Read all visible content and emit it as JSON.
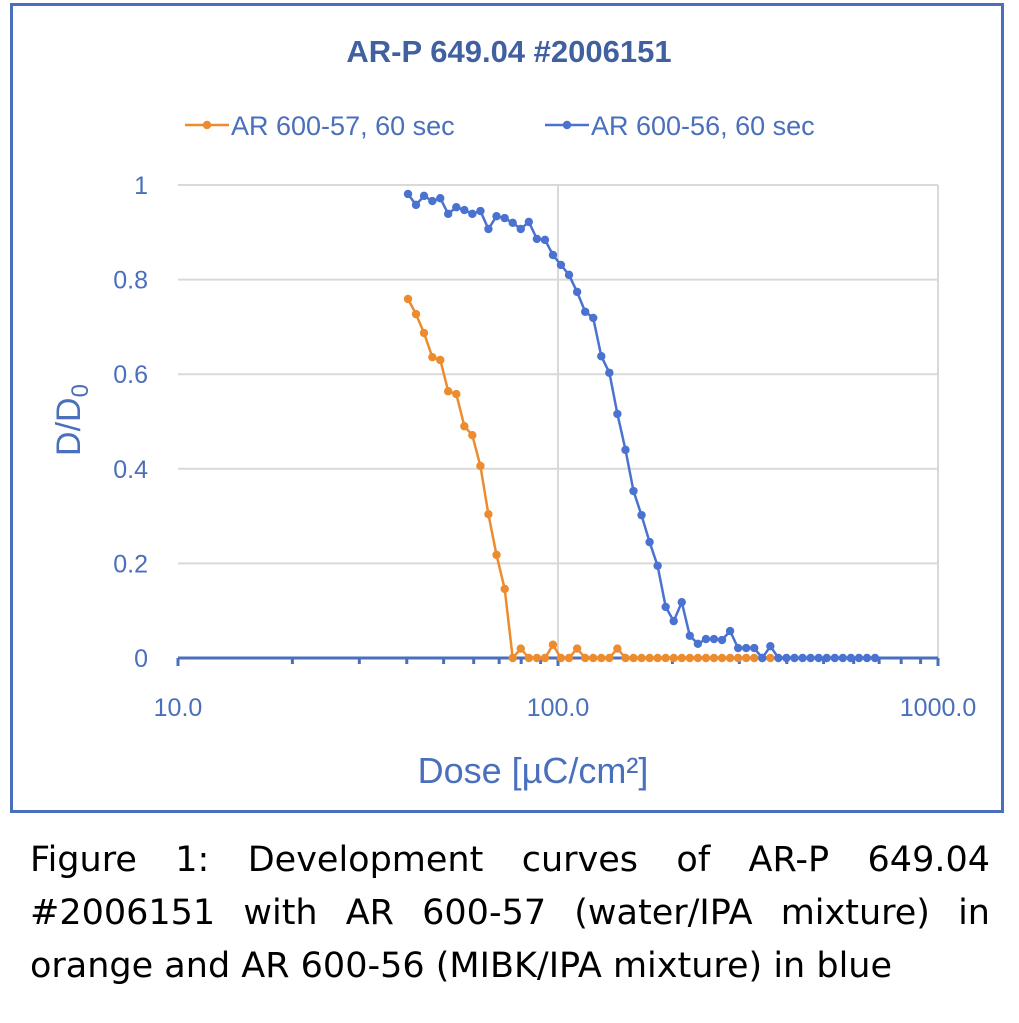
{
  "chart_data": {
    "type": "line",
    "title": "AR-P 649.04 #2006151",
    "xlabel": "Dose [µC/cm²]",
    "ylabel_main": "D/D",
    "ylabel_sub": "0",
    "xscale": "log",
    "xlim": [
      10,
      1000
    ],
    "ylim": [
      0,
      1
    ],
    "xticks": [
      "10.0",
      "100.0",
      "1000.0"
    ],
    "yticks": [
      "0",
      "0.2",
      "0.4",
      "0.6",
      "0.8",
      "1"
    ],
    "grid": true,
    "legend_position": "top",
    "series": [
      {
        "name": "AR 600-57, 60 sec",
        "color": "#ed8b2f",
        "x": [
          40.3,
          42.3,
          44.4,
          46.7,
          49.0,
          51.4,
          54.0,
          56.7,
          59.5,
          62.5,
          65.6,
          68.9,
          72.4,
          76.0,
          79.8,
          83.8,
          88.0,
          92.4,
          97.0,
          101.8,
          106.9,
          112.3,
          117.9,
          123.8,
          130.0,
          136.5,
          143.3,
          150.5,
          158.0,
          165.9,
          174.2,
          182.9,
          192.0,
          201.6,
          211.7,
          222.3,
          233.4,
          245.1,
          257.3,
          270.2,
          283.7,
          297.9,
          312.8,
          328.4,
          344.8,
          362.1
        ],
        "y": [
          0.759,
          0.727,
          0.687,
          0.636,
          0.63,
          0.564,
          0.558,
          0.49,
          0.471,
          0.406,
          0.304,
          0.218,
          0.146,
          0,
          0.02,
          0,
          0,
          0,
          0.028,
          0,
          0,
          0.02,
          0,
          0,
          0,
          0,
          0.02,
          0,
          0,
          0,
          0,
          0,
          0,
          0,
          0,
          0,
          0,
          0,
          0,
          0,
          0,
          0,
          0,
          0,
          0,
          0
        ]
      },
      {
        "name": "AR 600-56, 60 sec",
        "color": "#4a72d0",
        "x": [
          40.3,
          42.3,
          44.4,
          46.7,
          49.0,
          51.4,
          54.0,
          56.7,
          59.5,
          62.5,
          65.6,
          68.9,
          72.4,
          76.0,
          79.8,
          83.8,
          88.0,
          92.4,
          97.0,
          101.8,
          106.9,
          112.3,
          117.9,
          123.8,
          130.0,
          136.5,
          143.3,
          150.5,
          158.0,
          165.9,
          174.2,
          182.9,
          192.0,
          201.6,
          211.7,
          222.3,
          233.4,
          245.1,
          257.3,
          270.2,
          283.7,
          297.9,
          312.8,
          328.4,
          344.8,
          362.1,
          380.2,
          399.2,
          419.1,
          440.1,
          462.1,
          485.2,
          509.5,
          535.0,
          561.7,
          589.8,
          619.3,
          650.2,
          682.8
        ],
        "y": [
          0.981,
          0.958,
          0.977,
          0.966,
          0.972,
          0.939,
          0.953,
          0.947,
          0.939,
          0.945,
          0.907,
          0.934,
          0.93,
          0.92,
          0.907,
          0.922,
          0.886,
          0.884,
          0.852,
          0.831,
          0.81,
          0.774,
          0.732,
          0.719,
          0.638,
          0.603,
          0.516,
          0.44,
          0.353,
          0.302,
          0.245,
          0.195,
          0.108,
          0.078,
          0.118,
          0.047,
          0.03,
          0.04,
          0.04,
          0.038,
          0.057,
          0.021,
          0.021,
          0.021,
          0,
          0.025,
          0,
          0,
          0,
          0,
          0,
          0,
          0,
          0,
          0,
          0,
          0,
          0,
          0
        ]
      }
    ]
  },
  "caption": "Figure 1: Development curves of AR-P 649.04 #2006151 with AR 600-57 (water/IPA mixture) in orange and AR 600-56 (MIBK/IPA mixture) in blue",
  "colors": {
    "axis": "#4a6fbd",
    "title": "#40609f",
    "grid": "#d9d9d9"
  }
}
